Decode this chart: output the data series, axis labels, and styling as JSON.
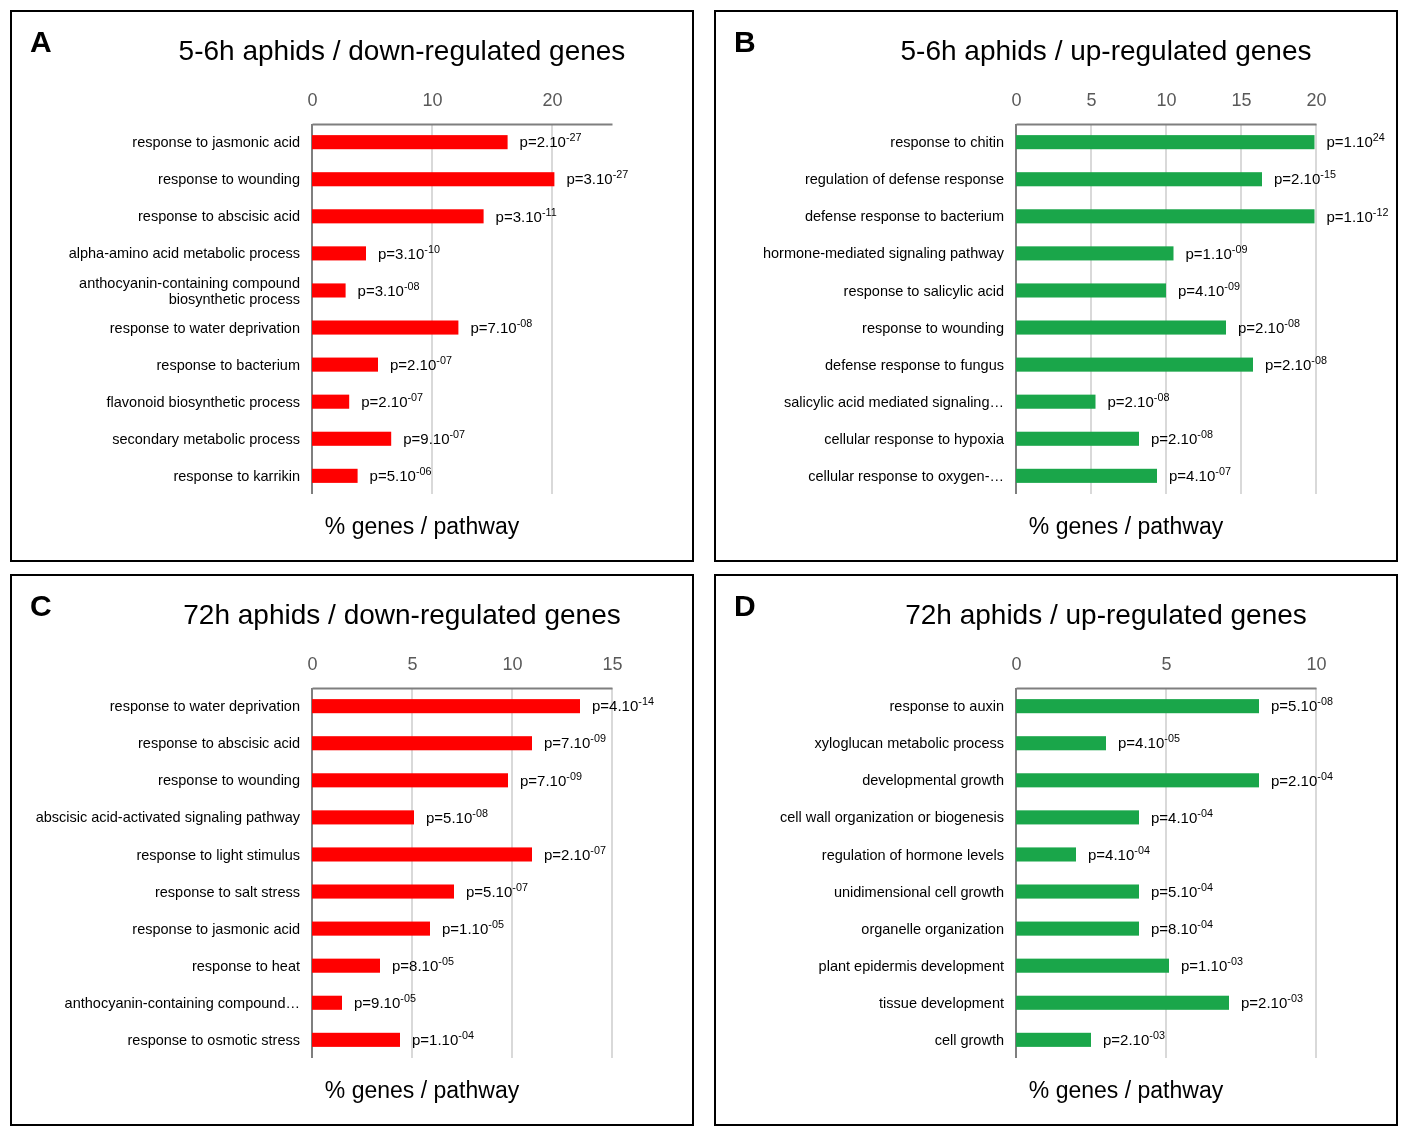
{
  "chart_data": [
    {
      "type": "bar",
      "orientation": "horizontal",
      "title": "5-6h aphids  / down-regulated genes",
      "xlabel": "% genes / pathway",
      "annotations": [
        "A"
      ],
      "color": "#ff0000",
      "grid": "x",
      "xlim": [
        0,
        25
      ],
      "xticks": [
        0,
        10,
        20
      ],
      "categories": [
        "response to jasmonic acid",
        "response to wounding",
        "response to abscisic acid",
        "alpha-amino acid metabolic process",
        "anthocyanin-containing compound biosynthetic process",
        "response to water deprivation",
        "response to bacterium",
        "flavonoid biosynthetic process",
        "secondary metabolic process",
        "response to karrikin"
      ],
      "values": [
        16.3,
        20.2,
        14.3,
        4.5,
        2.8,
        12.2,
        5.5,
        3.1,
        6.6,
        3.8
      ],
      "value_labels": [
        "p=2.10$^{-27}$",
        "p=3.10$^{-27}$",
        "p=3.10$^{-11}$",
        "p=3.10$^{-10}$",
        "p=3.10$^{-08}$",
        "p=7.10$^{-08}$",
        "p=2.10$^{-07}$",
        "p=2.10$^{-07}$",
        "p=9.10$^{-07}$",
        "p=5.10$^{-06}$"
      ]
    },
    {
      "type": "bar",
      "orientation": "horizontal",
      "title": "5-6h aphids / up-regulated genes",
      "xlabel": "% genes / pathway",
      "annotations": [
        "B"
      ],
      "color": "#1aa64a",
      "grid": "x",
      "xlim": [
        0,
        20
      ],
      "xticks": [
        0,
        5,
        10,
        15,
        20
      ],
      "categories": [
        "response to chitin",
        "regulation of defense response",
        "defense response to bacterium",
        "hormone-mediated signaling pathway",
        "response to salicylic acid",
        "response to wounding",
        "defense response to fungus",
        "salicylic acid mediated signaling…",
        "cellular response to hypoxia",
        "cellular response to oxygen-…"
      ],
      "values": [
        19.9,
        16.4,
        19.9,
        10.5,
        10.0,
        14.0,
        15.8,
        5.3,
        8.2,
        9.4
      ],
      "value_labels": [
        "p=1.10$^{24}$",
        "p=2.10$^{-15}$",
        "p=1.10$^{-12}$",
        "p=1.10$^{-09}$",
        "p=4.10$^{-09}$",
        "p=2.10$^{-08}$",
        "p=2.10$^{-08}$",
        "p=2.10$^{-08}$",
        "p=2.10$^{-08}$",
        "p=4.10$^{-07}$"
      ]
    },
    {
      "type": "bar",
      "orientation": "horizontal",
      "title": "72h aphids / down-regulated genes",
      "xlabel": "% genes / pathway",
      "annotations": [
        "C"
      ],
      "color": "#ff0000",
      "grid": "x",
      "xlim": [
        0,
        15
      ],
      "xticks": [
        0,
        5,
        10,
        15
      ],
      "categories": [
        "response to water deprivation",
        "response to abscisic acid",
        "response to wounding",
        "abscisic acid-activated signaling pathway",
        "response to light stimulus",
        "response to salt stress",
        "response to jasmonic acid",
        "response to heat",
        "anthocyanin-containing compound…",
        "response to osmotic stress"
      ],
      "values": [
        13.4,
        11.0,
        9.8,
        5.1,
        11.0,
        7.1,
        5.9,
        3.4,
        1.5,
        4.4
      ],
      "value_labels": [
        "p=4.10$^{-14}$",
        "p=7.10$^{-09}$",
        "p=7.10$^{-09}$",
        "p=5.10$^{-08}$",
        "p=2.10$^{-07}$",
        "p=5.10$^{-07}$",
        "p=1.10$^{-05}$",
        "p=8.10$^{-05}$",
        "p=9.10$^{-05}$",
        "p=1.10$^{-04}$"
      ]
    },
    {
      "type": "bar",
      "orientation": "horizontal",
      "title": "72h aphids / up-regulated genes",
      "xlabel": "% genes / pathway",
      "annotations": [
        "D"
      ],
      "color": "#1aa64a",
      "grid": "x",
      "xlim": [
        0,
        10
      ],
      "xticks": [
        0,
        5,
        10
      ],
      "categories": [
        "response to auxin",
        "xyloglucan metabolic process",
        "developmental growth",
        "cell wall organization or biogenesis",
        "regulation of hormone levels",
        "unidimensional cell growth",
        "organelle organization",
        "plant epidermis development",
        "tissue development",
        "cell growth"
      ],
      "values": [
        8.1,
        3.0,
        8.1,
        4.1,
        2.0,
        4.1,
        4.1,
        5.1,
        7.1,
        2.5
      ],
      "value_labels": [
        "p=5.10$^{-08}$",
        "p=4.10$^{-05}$",
        "p=2.10$^{-04}$",
        "p=4.10$^{-04}$",
        "p=4.10$^{-04}$",
        "p=5.10$^{-04}$",
        "p=8.10$^{-04}$",
        "p=1.10$^{-03}$",
        "p=2.10$^{-03}$",
        "p=2.10$^{-03}$"
      ]
    }
  ]
}
